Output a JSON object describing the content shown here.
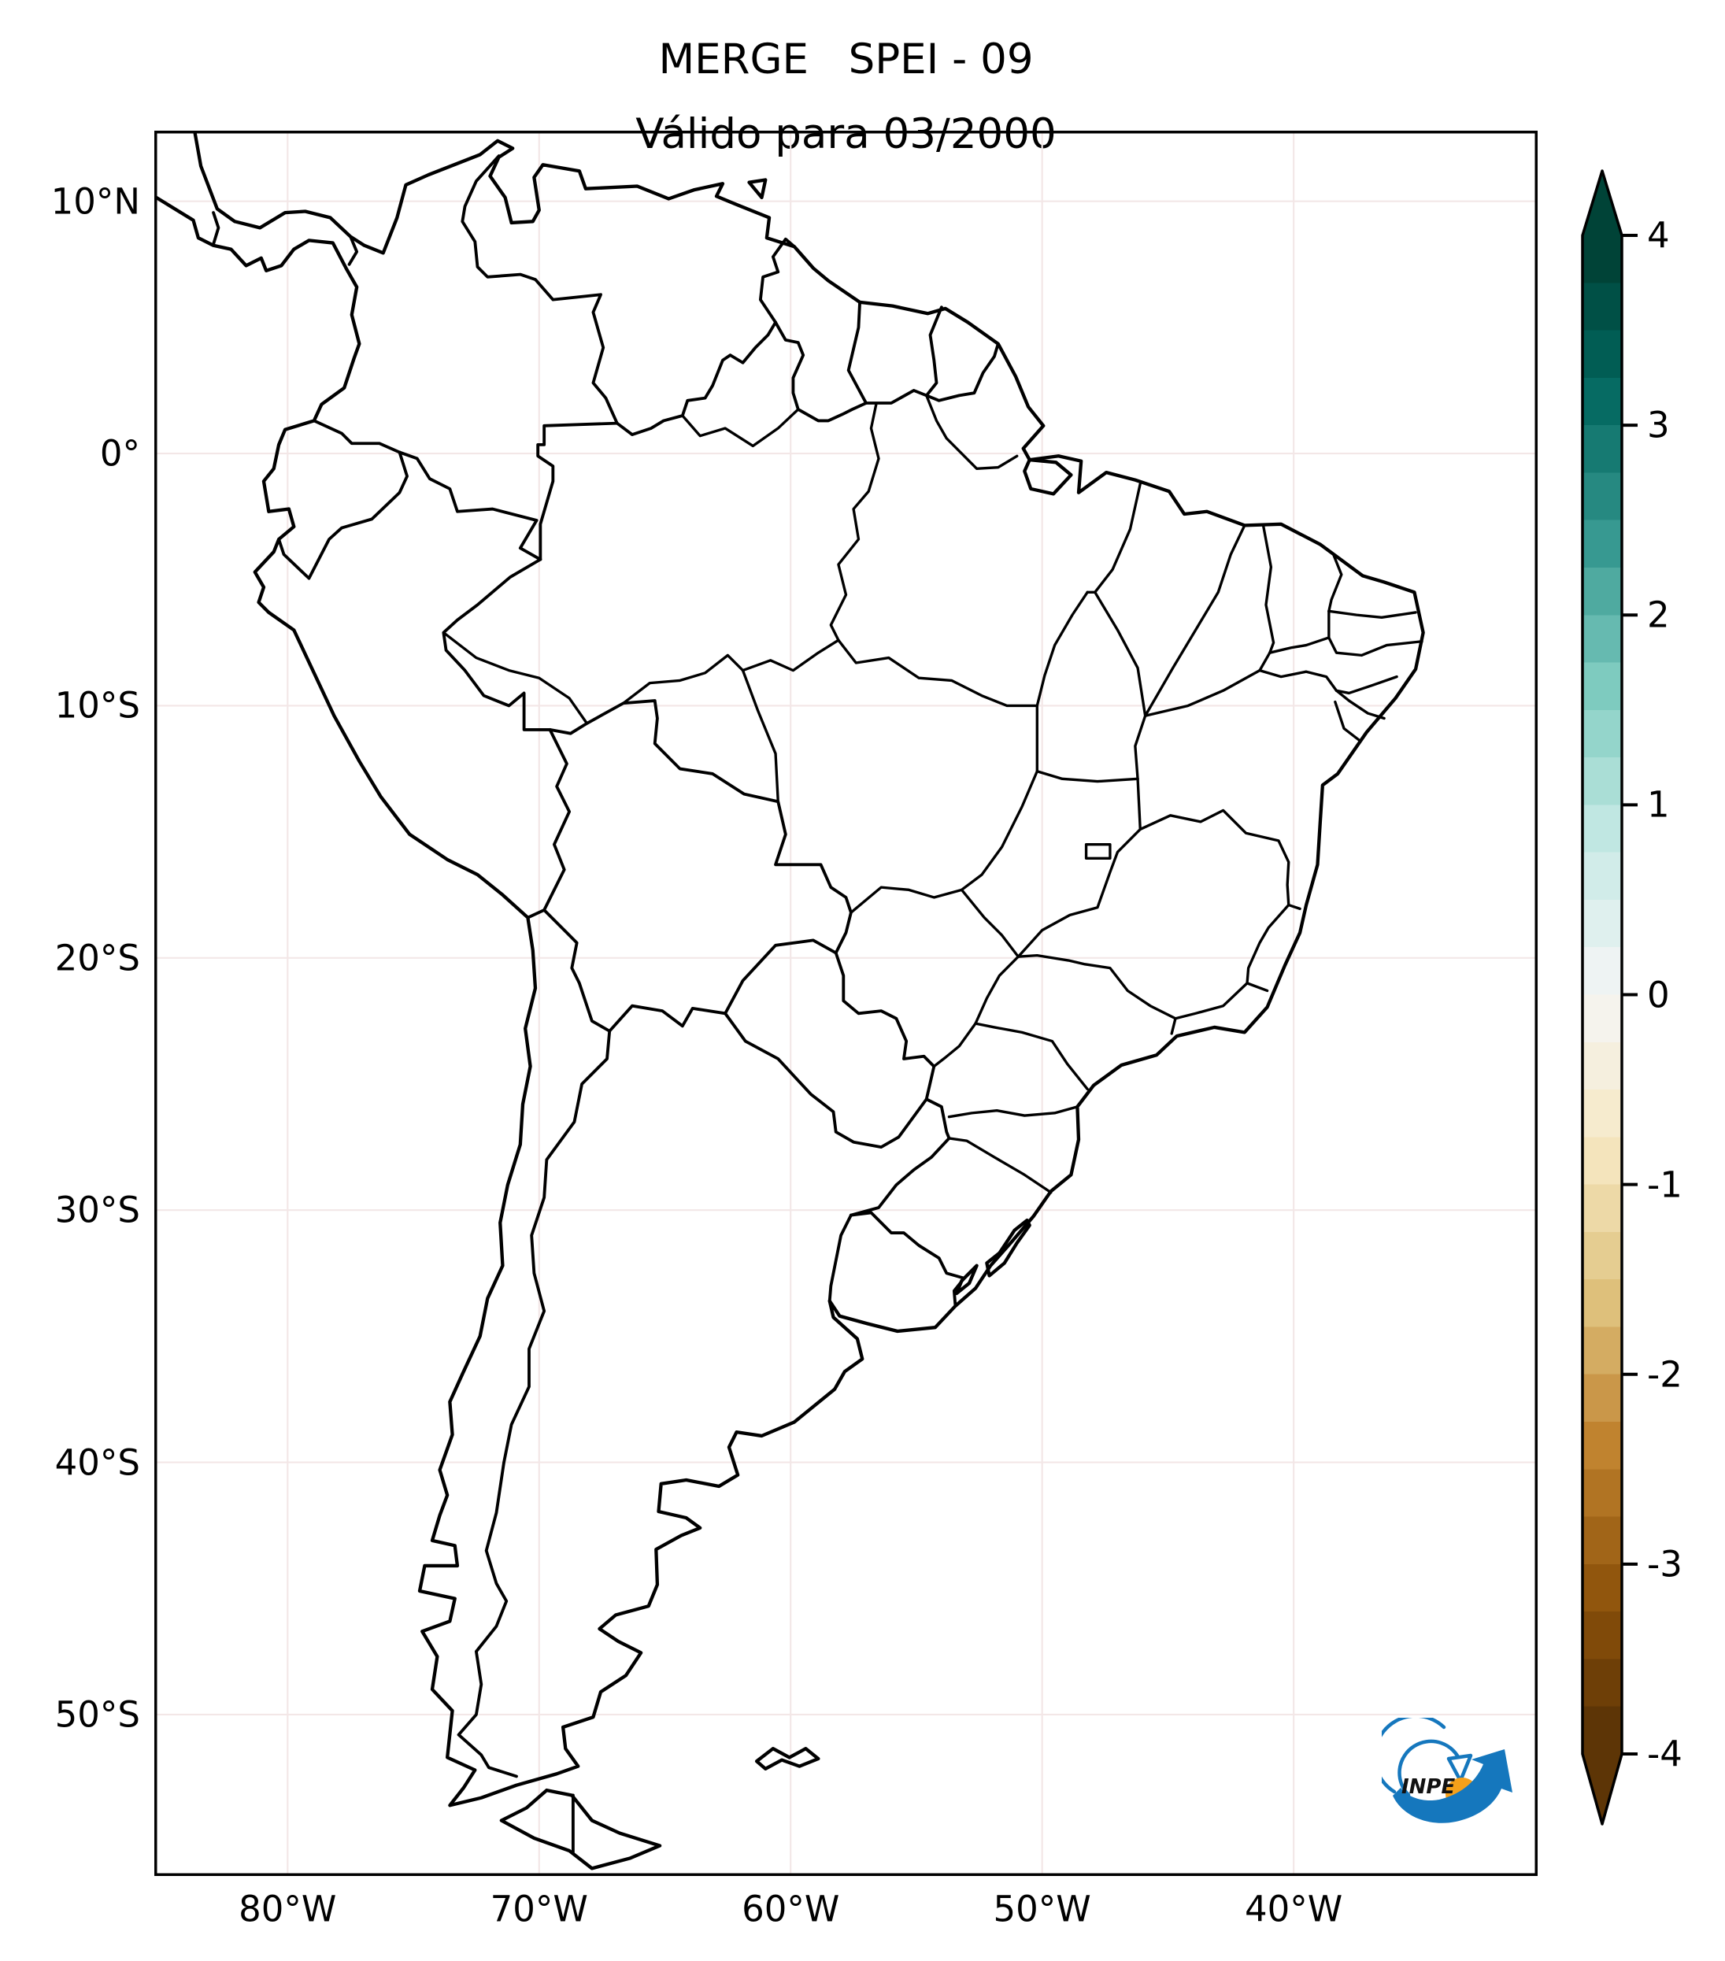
{
  "figure": {
    "title_line1": "MERGE   SPEI - 09",
    "title_line2": "Válido para 03/2000"
  },
  "map": {
    "extent": {
      "lon_min": -85.3,
      "lon_max": -30.3,
      "lat_min": -56.4,
      "lat_max": 12.8
    },
    "lat_ticks": [
      {
        "value": 10,
        "label": "10°N"
      },
      {
        "value": 0,
        "label": "0°"
      },
      {
        "value": -10,
        "label": "10°S"
      },
      {
        "value": -20,
        "label": "20°S"
      },
      {
        "value": -30,
        "label": "30°S"
      },
      {
        "value": -40,
        "label": "40°S"
      },
      {
        "value": -50,
        "label": "50°S"
      }
    ],
    "lon_ticks": [
      {
        "value": -80,
        "label": "80°W"
      },
      {
        "value": -70,
        "label": "70°W"
      },
      {
        "value": -60,
        "label": "60°W"
      },
      {
        "value": -50,
        "label": "50°W"
      },
      {
        "value": -40,
        "label": "40°W"
      }
    ]
  },
  "colorbar": {
    "colormap": "BrBG",
    "vmin": -4,
    "vmax": 4,
    "bands": 32,
    "tick_values": [
      4,
      3,
      2,
      1,
      0,
      -1,
      -2,
      -3,
      -4
    ],
    "tick_labels": [
      "4",
      "3",
      "2",
      "1",
      "0",
      "-1",
      "-2",
      "-3",
      "-4"
    ],
    "stops": [
      [
        0.0,
        "#543005"
      ],
      [
        0.1,
        "#8c510a"
      ],
      [
        0.2,
        "#bf812d"
      ],
      [
        0.3,
        "#dfc27d"
      ],
      [
        0.4,
        "#f6e8c3"
      ],
      [
        0.5,
        "#f5f5f5"
      ],
      [
        0.6,
        "#c7eae5"
      ],
      [
        0.7,
        "#80cdc1"
      ],
      [
        0.8,
        "#35978f"
      ],
      [
        0.9,
        "#01665e"
      ],
      [
        1.0,
        "#003c30"
      ]
    ]
  },
  "logo": {
    "text": "INPE",
    "blue": "#1577bd",
    "orange": "#f6a01a"
  },
  "colors": {
    "outline": "#000000",
    "grid": "#f3e7e7",
    "background": "#ffffff"
  }
}
